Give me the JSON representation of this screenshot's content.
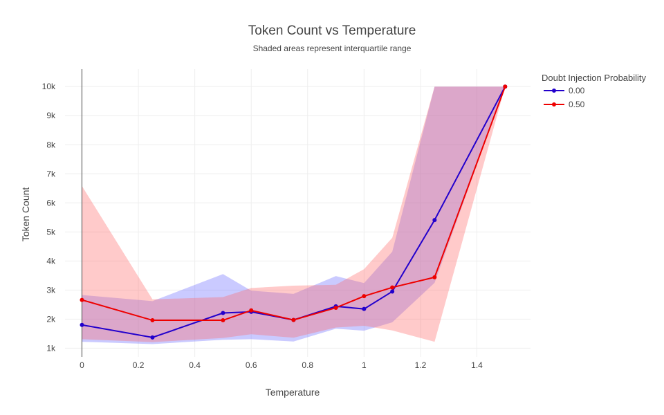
{
  "chart_data": {
    "type": "line",
    "title": "Token Count vs Temperature",
    "subtitle": "Shaded areas represent interquartile range",
    "xlabel": "Temperature",
    "ylabel": "Token Count",
    "xlim": [
      -0.06,
      1.59
    ],
    "ylim": [
      700,
      10600
    ],
    "x_ticks": [
      0,
      0.2,
      0.4,
      0.6,
      0.8,
      1,
      1.2,
      1.4
    ],
    "x_tick_labels": [
      "0",
      "0.2",
      "0.4",
      "0.6",
      "0.8",
      "1",
      "1.2",
      "1.4"
    ],
    "y_ticks": [
      1000,
      2000,
      3000,
      4000,
      5000,
      6000,
      7000,
      8000,
      9000,
      10000
    ],
    "y_tick_labels": [
      "1k",
      "2k",
      "3k",
      "4k",
      "5k",
      "6k",
      "7k",
      "8k",
      "9k",
      "10k"
    ],
    "grid": true,
    "legend": {
      "title": "Doubt Injection Probability",
      "placement": "top-right"
    },
    "series": [
      {
        "name": "0.00",
        "color": "#2200cc",
        "band_color": "#6666ff",
        "x": [
          0,
          0.25,
          0.5,
          0.6,
          0.75,
          0.9,
          1.0,
          1.1,
          1.25,
          1.5
        ],
        "y": [
          1800,
          1370,
          2210,
          2250,
          1970,
          2440,
          2350,
          2950,
          5410,
          10000
        ],
        "q1": [
          1220,
          1140,
          1290,
          1310,
          1230,
          1670,
          1600,
          1890,
          3250,
          10000
        ],
        "q3": [
          2830,
          2620,
          3550,
          2980,
          2870,
          3480,
          3240,
          4320,
          10000,
          10000
        ]
      },
      {
        "name": "0.50",
        "color": "#ee0000",
        "band_color": "#ff6666",
        "x": [
          0,
          0.25,
          0.5,
          0.6,
          0.75,
          0.9,
          1.0,
          1.1,
          1.25,
          1.5
        ],
        "y": [
          2660,
          1960,
          1960,
          2300,
          1970,
          2390,
          2790,
          3090,
          3440,
          10000
        ],
        "q1": [
          1310,
          1210,
          1350,
          1480,
          1360,
          1710,
          1770,
          1610,
          1220,
          10000
        ],
        "q3": [
          6580,
          2680,
          2760,
          3070,
          3150,
          3180,
          3720,
          4800,
          10000,
          10000
        ]
      }
    ]
  }
}
